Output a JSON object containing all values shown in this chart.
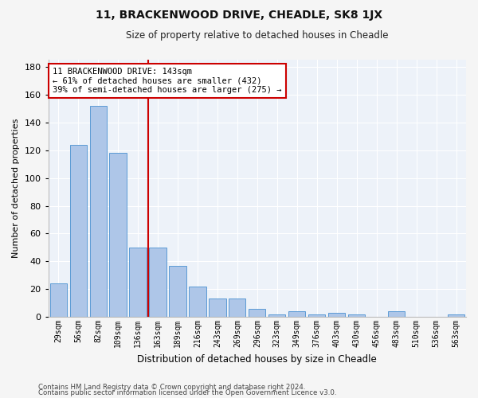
{
  "title": "11, BRACKENWOOD DRIVE, CHEADLE, SK8 1JX",
  "subtitle": "Size of property relative to detached houses in Cheadle",
  "xlabel": "Distribution of detached houses by size in Cheadle",
  "ylabel": "Number of detached properties",
  "categories": [
    "29sqm",
    "56sqm",
    "82sqm",
    "109sqm",
    "136sqm",
    "163sqm",
    "189sqm",
    "216sqm",
    "243sqm",
    "269sqm",
    "296sqm",
    "323sqm",
    "349sqm",
    "376sqm",
    "403sqm",
    "430sqm",
    "456sqm",
    "483sqm",
    "510sqm",
    "536sqm",
    "563sqm"
  ],
  "values": [
    24,
    124,
    152,
    118,
    50,
    50,
    37,
    22,
    13,
    13,
    6,
    2,
    4,
    2,
    3,
    2,
    0,
    4,
    0,
    0,
    2
  ],
  "bar_color": "#aec6e8",
  "bar_edge_color": "#5b9bd5",
  "vline_x_index": 4,
  "vline_color": "#cc0000",
  "annotation_lines": [
    "11 BRACKENWOOD DRIVE: 143sqm",
    "← 61% of detached houses are smaller (432)",
    "39% of semi-detached houses are larger (275) →"
  ],
  "annotation_box_color": "#ffffff",
  "annotation_box_edge": "#cc0000",
  "bg_color": "#edf2f9",
  "grid_color": "#ffffff",
  "fig_bg_color": "#f5f5f5",
  "ylim": [
    0,
    185
  ],
  "yticks": [
    0,
    20,
    40,
    60,
    80,
    100,
    120,
    140,
    160,
    180
  ],
  "footer_line1": "Contains HM Land Registry data © Crown copyright and database right 2024.",
  "footer_line2": "Contains public sector information licensed under the Open Government Licence v3.0."
}
